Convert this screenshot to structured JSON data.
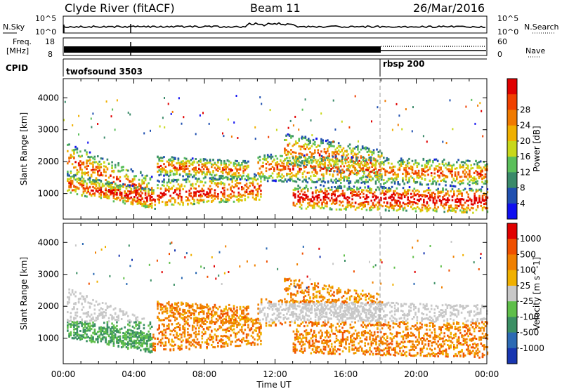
{
  "header": {
    "title_left": "Clyde River (fitACF)",
    "title_center": "Beam 11",
    "title_right": "26/Mar/2016"
  },
  "status_panel": {
    "nsky_label": "N.Sky",
    "nsearch_label": "N.Search",
    "freq_label_line1": "Freq.",
    "freq_label_line2": "[MHz]",
    "nave_label": "Nave",
    "cpid_label": "CPID",
    "noise_ticks": [
      "10^5",
      "10^0"
    ],
    "noise_ticks_right": [
      "10^5",
      "10^0"
    ],
    "freq_ticks": [
      "18",
      "8"
    ],
    "nave_ticks": [
      "60",
      "0"
    ],
    "cpid_segments": [
      {
        "name": "twofsound 3503",
        "start_hour": 0,
        "end_hour": 18
      },
      {
        "name": "rbsp 200",
        "start_hour": 18,
        "end_hour": 24
      }
    ]
  },
  "chart_data": [
    {
      "type": "heatmap",
      "title": "",
      "xlabel": "Time UT",
      "ylabel": "Slant Range [km]",
      "xlim": [
        0,
        24
      ],
      "ylim": [
        200,
        4600
      ],
      "x_ticks": [
        "00:00",
        "04:00",
        "08:00",
        "12:00",
        "16:00",
        "20:00",
        "00:00"
      ],
      "y_ticks": [
        "1000",
        "2000",
        "3000",
        "4000"
      ],
      "colorbar_label": "Power [dB]",
      "colorbar_ticks": [
        "4",
        "8",
        "12",
        "16",
        "20",
        "24",
        "28"
      ],
      "colorbar_colors": [
        "#1010f0",
        "#2050b0",
        "#3a8a6a",
        "#5bbf5b",
        "#c8d81a",
        "#f0b000",
        "#f07a00",
        "#f04000",
        "#e00000"
      ],
      "range_max_km": 4600
    },
    {
      "type": "heatmap",
      "title": "",
      "xlabel": "Time UT",
      "ylabel": "Slant Range [km]",
      "xlim": [
        0,
        24
      ],
      "ylim": [
        200,
        4600
      ],
      "x_ticks": [
        "00:00",
        "04:00",
        "08:00",
        "12:00",
        "16:00",
        "20:00",
        "00:00"
      ],
      "y_ticks": [
        "1000",
        "2000",
        "3000",
        "4000"
      ],
      "colorbar_label": "Velocity [m s^-1]",
      "colorbar_ticks": [
        "1000",
        "500",
        "100",
        "25",
        "-25",
        "-100",
        "-500",
        "-1000"
      ],
      "colorbar_colors": [
        "#1836b0",
        "#2c6ab4",
        "#3b8f64",
        "#5fbf4a",
        "#c8c8c8",
        "#f0b000",
        "#f08000",
        "#f05000",
        "#e00000"
      ]
    }
  ],
  "x_axis": {
    "label": "Time UT",
    "ticks": [
      "00:00",
      "04:00",
      "08:00",
      "12:00",
      "16:00",
      "20:00",
      "00:00"
    ]
  }
}
